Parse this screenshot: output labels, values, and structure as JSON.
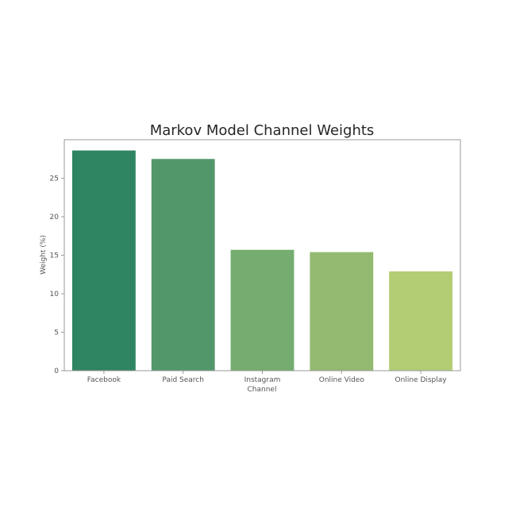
{
  "chart_data": {
    "type": "bar",
    "title": "Markov Model Channel Weights",
    "xlabel": "Channel",
    "ylabel": "Weight (%)",
    "categories": [
      "Facebook",
      "Paid Search",
      "Instagram",
      "Online Video",
      "Online Display"
    ],
    "values": [
      28.6,
      27.5,
      15.7,
      15.4,
      12.9
    ],
    "colors": [
      "#2f8462",
      "#52976a",
      "#74ad6f",
      "#93ba70",
      "#b3cd74"
    ],
    "ylim": [
      0,
      30
    ],
    "yticks": [
      0,
      5,
      10,
      15,
      20,
      25
    ],
    "grid": false,
    "legend": "none"
  }
}
